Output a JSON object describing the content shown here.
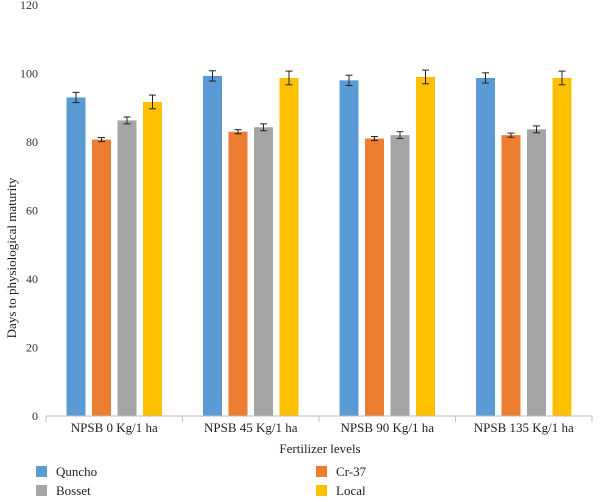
{
  "chart_data": {
    "type": "bar",
    "xlabel": "Fertilizer levels",
    "ylabel": "Days to physiological maturity",
    "ylim": [
      0,
      120
    ],
    "yticks": [
      0,
      20,
      40,
      60,
      80,
      100,
      120
    ],
    "grid": false,
    "legend_position": "bottom",
    "categories": [
      "NPSB 0 Kg/1 ha",
      "NPSB 45 Kg/1 ha",
      "NPSB 90 Kg/1 ha",
      "NPSB 135 Kg/1 ha"
    ],
    "series": [
      {
        "name": "Quncho",
        "color": "#5b9bd5",
        "values": [
          93.0,
          99.3,
          98.0,
          98.7
        ],
        "errors": [
          1.5,
          1.5,
          1.5,
          1.5
        ]
      },
      {
        "name": "Cr-37",
        "color": "#ed7d31",
        "values": [
          80.7,
          83.0,
          81.0,
          82.0
        ],
        "errors": [
          0.6,
          0.6,
          0.6,
          0.6
        ]
      },
      {
        "name": "Bosset",
        "color": "#a5a5a5",
        "values": [
          86.3,
          84.3,
          82.0,
          83.7
        ],
        "errors": [
          1.0,
          1.0,
          1.0,
          1.0
        ]
      },
      {
        "name": "Local",
        "color": "#ffc000",
        "values": [
          91.7,
          98.7,
          99.0,
          98.7
        ],
        "errors": [
          2.0,
          2.0,
          2.0,
          2.0
        ]
      }
    ]
  }
}
